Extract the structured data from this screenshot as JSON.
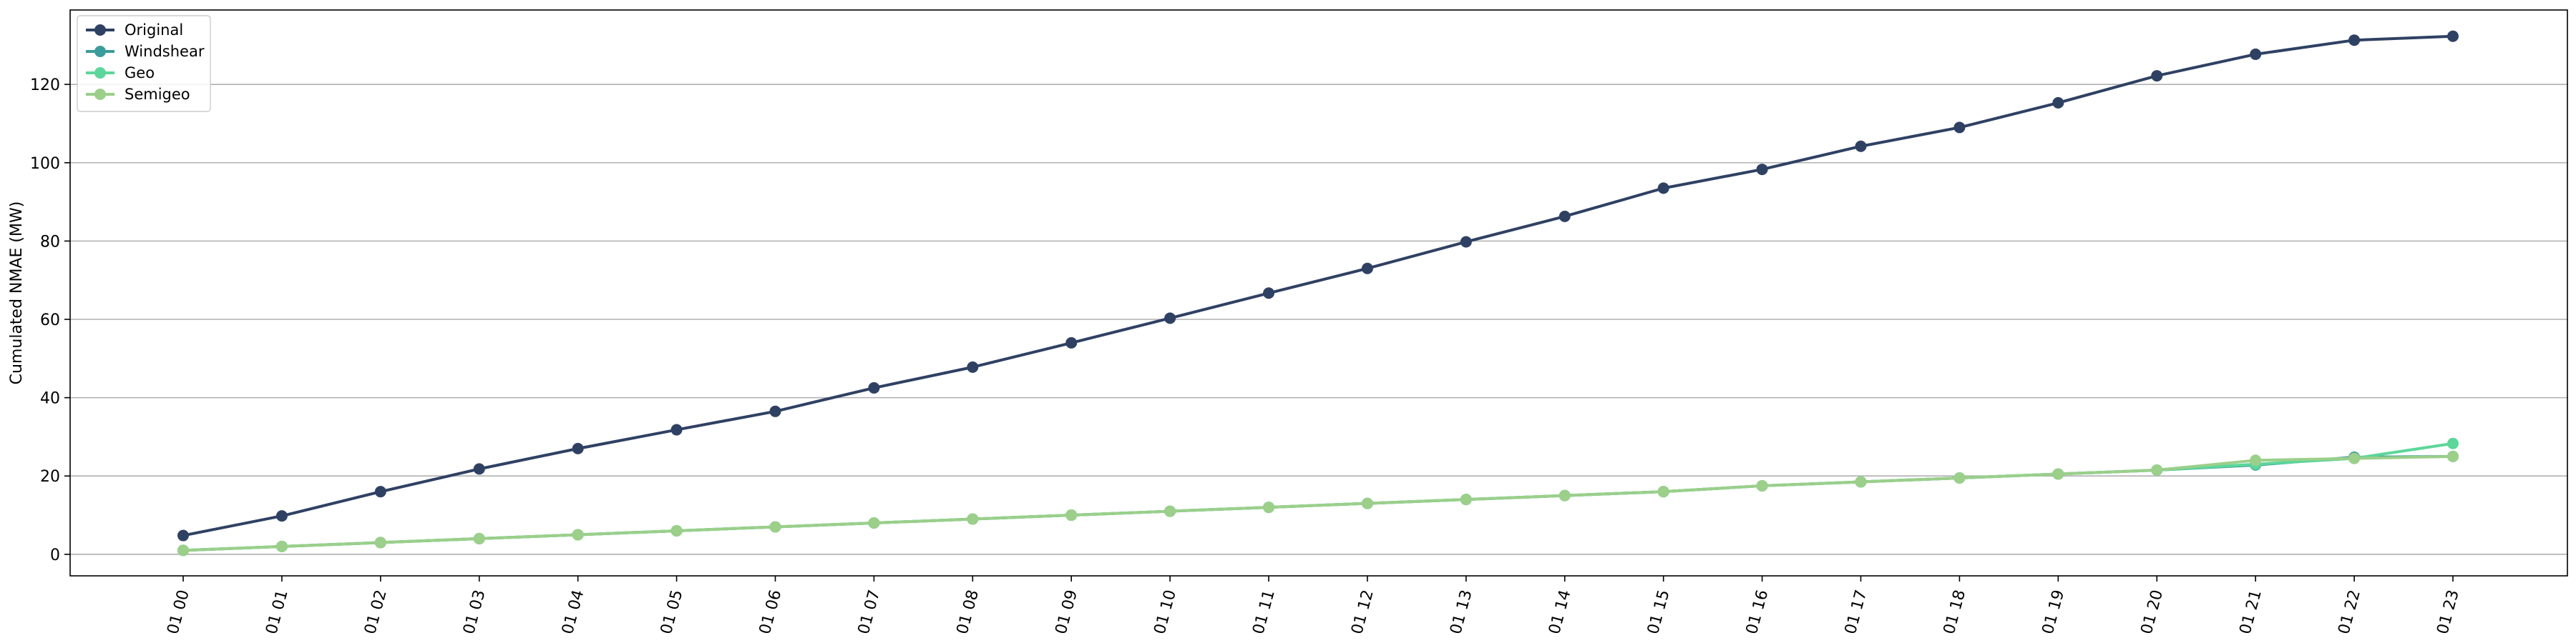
{
  "chart_data": {
    "type": "line",
    "title": "",
    "xlabel": "",
    "ylabel": "Cumulated NMAE (MW)",
    "categories": [
      "01 00",
      "01 01",
      "01 02",
      "01 03",
      "01 04",
      "01 05",
      "01 06",
      "01 07",
      "01 08",
      "01 09",
      "01 10",
      "01 11",
      "01 12",
      "01 13",
      "01 14",
      "01 15",
      "01 16",
      "01 17",
      "01 18",
      "01 19",
      "01 20",
      "01 21",
      "01 22",
      "01 23"
    ],
    "yticks": [
      0,
      20,
      40,
      60,
      80,
      100,
      120
    ],
    "ylim": [
      -5.5,
      139
    ],
    "grid": "horizontal",
    "legend_position": "top-left",
    "series": [
      {
        "name": "Original",
        "color": "#2f4163",
        "values": [
          4.8,
          9.8,
          16.0,
          21.8,
          27.0,
          31.8,
          36.5,
          42.5,
          47.8,
          54.0,
          60.3,
          66.7,
          73.0,
          79.8,
          86.3,
          93.5,
          98.3,
          104.2,
          109.0,
          115.3,
          122.2,
          127.7,
          131.3,
          132.3
        ]
      },
      {
        "name": "Windshear",
        "color": "#3b9c9c",
        "values": [
          1.0,
          2.0,
          3.0,
          4.0,
          5.0,
          6.0,
          7.0,
          8.0,
          9.0,
          10.0,
          11.0,
          12.0,
          13.0,
          14.0,
          15.0,
          16.0,
          17.5,
          18.5,
          19.5,
          20.5,
          21.5,
          22.8,
          24.8,
          25.0
        ]
      },
      {
        "name": "Geo",
        "color": "#5cd69a",
        "values": [
          1.0,
          2.0,
          3.0,
          4.0,
          5.0,
          6.0,
          7.0,
          8.0,
          9.0,
          10.0,
          11.0,
          12.0,
          13.0,
          14.0,
          15.0,
          16.0,
          17.5,
          18.5,
          19.5,
          20.5,
          21.5,
          23.0,
          24.5,
          28.3
        ]
      },
      {
        "name": "Semigeo",
        "color": "#9bcf8a",
        "values": [
          1.0,
          2.0,
          3.0,
          4.0,
          5.0,
          6.0,
          7.0,
          8.0,
          9.0,
          10.0,
          11.0,
          12.0,
          13.0,
          14.0,
          15.0,
          16.0,
          17.5,
          18.5,
          19.5,
          20.5,
          21.5,
          24.0,
          24.5,
          25.0
        ]
      }
    ]
  }
}
